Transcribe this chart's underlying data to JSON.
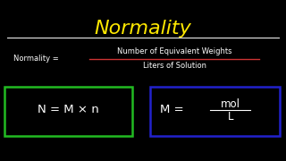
{
  "background_color": "#000000",
  "title": "Normality",
  "title_color": "#FFE800",
  "title_fontsize": 16,
  "separator_color": "#FFFFFF",
  "normality_label": "Normality = ",
  "numerator": "Number of Equivalent Weights",
  "denominator": "Liters of Solution",
  "fraction_line_color": "#CC3333",
  "text_color": "#FFFFFF",
  "formula1": "N = M × n",
  "formula2_left": "M = ",
  "formula2_num": "mol",
  "formula2_den": "L",
  "box1_color": "#22BB22",
  "box2_color": "#2222CC",
  "label_fontsize": 6.0,
  "formula_fontsize": 9.5
}
